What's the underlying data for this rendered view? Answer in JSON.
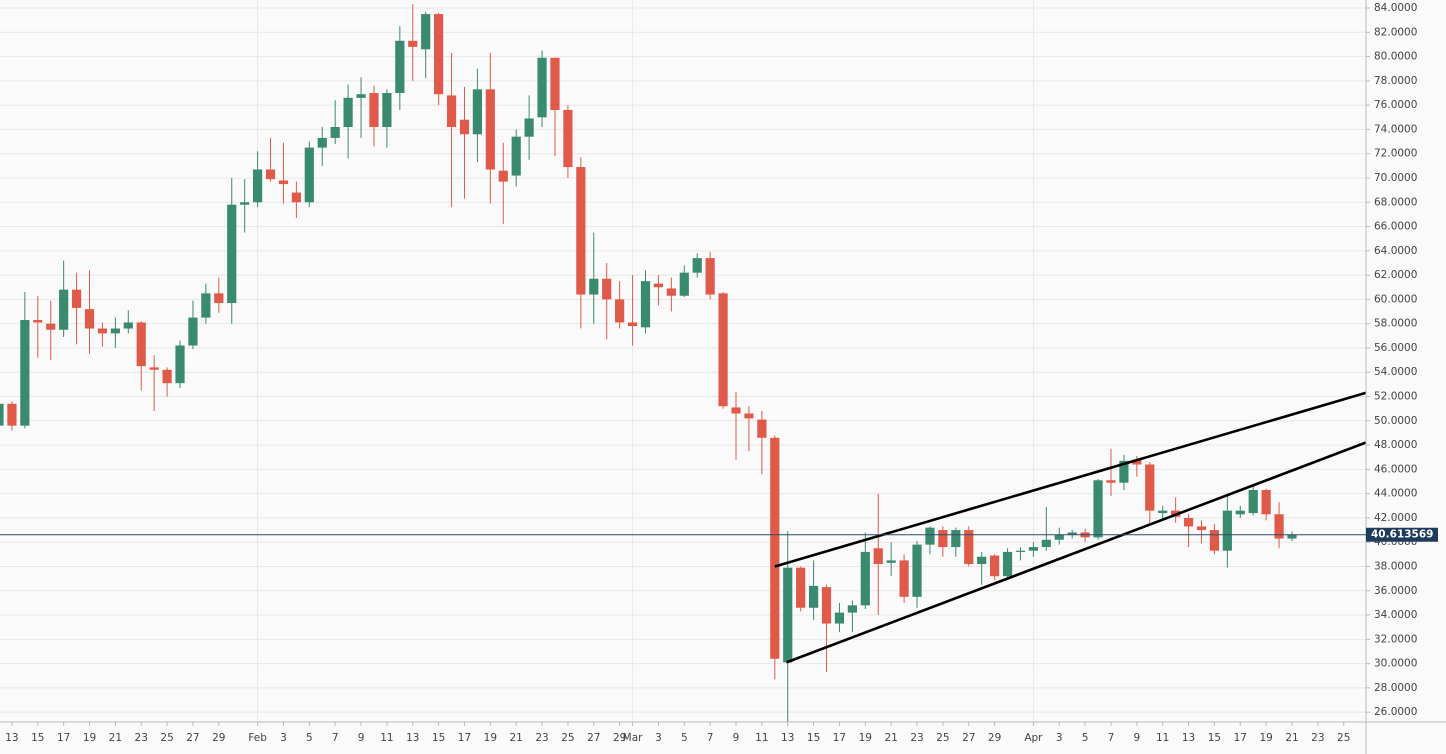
{
  "chart_data": {
    "type": "candlestick",
    "categories": [
      null,
      "13",
      null,
      "15",
      null,
      "17",
      null,
      "19",
      null,
      "21",
      null,
      "23",
      null,
      "25",
      null,
      "27",
      null,
      "29",
      null,
      null,
      "Feb",
      null,
      "3",
      null,
      "5",
      null,
      "7",
      null,
      "9",
      null,
      "11",
      null,
      "13",
      null,
      "15",
      null,
      "17",
      null,
      "19",
      null,
      "21",
      null,
      "23",
      null,
      "25",
      null,
      "27",
      null,
      "29",
      "Mar",
      null,
      "3",
      null,
      "5",
      null,
      "7",
      null,
      "9",
      null,
      "11",
      null,
      "13",
      null,
      "15",
      null,
      "17",
      null,
      "19",
      null,
      "21",
      null,
      "23",
      null,
      "25",
      null,
      "27",
      null,
      "29",
      null,
      null,
      "Apr",
      null,
      "3",
      null,
      "5",
      null,
      "7",
      null,
      "9",
      null,
      "11",
      null,
      "13",
      null,
      "15",
      null,
      "17",
      null,
      "19",
      null,
      "21",
      null,
      "23",
      null,
      "25",
      null
    ],
    "open": [
      49.6,
      51.4,
      49.6,
      58.3,
      58.0,
      57.5,
      60.8,
      59.2,
      57.6,
      57.2,
      57.6,
      58.1,
      54.4,
      54.2,
      53.1,
      56.2,
      58.5,
      60.5,
      59.7,
      67.8,
      68.0,
      70.7,
      69.8,
      68.8,
      68.0,
      72.5,
      73.3,
      74.2,
      76.6,
      77.0,
      74.2,
      77.0,
      81.3,
      80.6,
      83.5,
      76.8,
      74.8,
      73.6,
      77.3,
      70.6,
      70.2,
      73.4,
      75.0,
      79.9,
      75.6,
      70.9,
      60.4,
      61.7,
      60.0,
      58.1,
      57.7,
      61.3,
      60.9,
      60.3,
      62.2,
      63.4,
      60.5,
      51.1,
      50.6,
      50.1,
      48.6,
      30.1,
      37.9,
      34.6,
      36.3,
      33.3,
      34.2,
      34.8,
      39.5,
      38.3,
      38.5,
      35.5,
      39.8,
      41.0,
      39.6,
      41.0,
      38.2,
      38.9,
      37.2,
      39.2,
      39.3,
      39.6,
      40.2,
      40.6,
      40.8,
      40.4,
      45.1,
      44.9,
      46.8,
      46.4,
      42.4,
      42.6,
      42.0,
      41.3,
      41.0,
      39.3,
      42.3,
      42.4,
      44.3,
      42.3,
      40.3,
      null,
      null,
      null,
      null,
      null
    ],
    "high": [
      51.6,
      51.6,
      60.6,
      60.3,
      59.9,
      63.2,
      62.2,
      62.4,
      58.1,
      58.5,
      59.1,
      58.2,
      55.4,
      54.4,
      56.6,
      59.9,
      61.3,
      61.8,
      70.0,
      69.9,
      72.2,
      73.3,
      72.9,
      69.7,
      73.0,
      74.2,
      76.4,
      77.7,
      78.3,
      77.6,
      77.3,
      82.5,
      84.3,
      83.7,
      83.6,
      80.3,
      77.5,
      79.0,
      80.3,
      72.9,
      74.0,
      76.8,
      80.5,
      79.9,
      76.0,
      71.7,
      65.5,
      63.0,
      61.5,
      62.0,
      62.4,
      62.0,
      61.8,
      62.8,
      63.8,
      63.9,
      60.6,
      52.4,
      51.2,
      50.8,
      48.8,
      40.9,
      38.0,
      38.5,
      36.5,
      35.0,
      35.2,
      40.8,
      44.0,
      40.0,
      39.0,
      40.1,
      41.3,
      41.3,
      41.2,
      41.3,
      39.2,
      39.0,
      39.5,
      39.6,
      40.0,
      42.9,
      41.2,
      41.0,
      41.1,
      45.2,
      47.7,
      47.2,
      47.1,
      46.6,
      43.0,
      43.7,
      42.3,
      41.8,
      41.5,
      43.8,
      43.0,
      44.6,
      44.4,
      43.3,
      40.9,
      null,
      null,
      null,
      null,
      null
    ],
    "low": [
      48.9,
      49.2,
      49.4,
      55.2,
      55.0,
      56.9,
      56.3,
      55.5,
      56.1,
      56.0,
      57.2,
      52.5,
      50.8,
      52.0,
      52.7,
      55.9,
      58.0,
      58.9,
      58.0,
      65.5,
      67.6,
      69.7,
      67.9,
      66.7,
      67.6,
      71.0,
      72.8,
      71.6,
      73.3,
      72.6,
      72.5,
      75.6,
      78.0,
      78.2,
      76.0,
      67.6,
      68.3,
      71.3,
      67.9,
      66.2,
      69.3,
      71.5,
      74.2,
      71.8,
      70.0,
      57.6,
      58.0,
      56.7,
      57.6,
      56.2,
      57.2,
      59.5,
      59.0,
      60.2,
      61.8,
      60.0,
      51.0,
      46.8,
      47.5,
      45.6,
      28.7,
      25.0,
      34.3,
      33.6,
      29.3,
      32.6,
      32.6,
      34.5,
      34.0,
      37.2,
      35.0,
      34.6,
      39.0,
      38.8,
      38.8,
      38.0,
      36.5,
      36.9,
      37.0,
      38.5,
      38.8,
      39.3,
      39.8,
      40.3,
      40.0,
      40.2,
      43.8,
      44.3,
      45.4,
      41.5,
      41.8,
      41.6,
      39.6,
      39.9,
      39.0,
      37.9,
      42.0,
      42.2,
      41.8,
      39.5,
      40.1,
      null,
      null,
      null,
      null,
      null
    ],
    "close": [
      51.4,
      49.6,
      58.3,
      58.1,
      57.5,
      60.8,
      59.3,
      57.6,
      57.2,
      57.6,
      58.1,
      54.5,
      54.2,
      53.1,
      56.2,
      58.5,
      60.5,
      59.7,
      67.8,
      68.0,
      70.7,
      69.9,
      69.5,
      68.0,
      72.5,
      73.3,
      74.2,
      76.6,
      76.9,
      74.2,
      77.0,
      81.3,
      80.8,
      83.5,
      76.9,
      74.2,
      73.6,
      77.3,
      70.7,
      69.7,
      73.4,
      74.9,
      79.9,
      75.6,
      70.9,
      60.4,
      61.7,
      60.0,
      58.1,
      57.8,
      61.5,
      61.0,
      60.3,
      62.2,
      63.4,
      60.4,
      51.2,
      50.6,
      50.2,
      48.6,
      30.4,
      37.9,
      34.6,
      36.4,
      33.3,
      34.2,
      34.8,
      39.2,
      38.2,
      38.5,
      35.5,
      39.8,
      41.2,
      39.6,
      41.0,
      38.2,
      38.8,
      37.2,
      39.2,
      39.3,
      39.6,
      40.2,
      40.6,
      40.8,
      40.4,
      45.1,
      44.9,
      46.7,
      46.4,
      42.6,
      42.6,
      42.1,
      41.3,
      41.0,
      39.3,
      42.6,
      42.6,
      44.3,
      42.3,
      40.3,
      40.6,
      null,
      null,
      null,
      null,
      null
    ],
    "colors": {
      "up": "#3a8a6f",
      "down": "#e05a4a"
    },
    "ylim": [
      25.19,
      84.66
    ],
    "yticks": [
      {
        "value": 26,
        "label": "26.0000"
      },
      {
        "value": 28,
        "label": "28.0000"
      },
      {
        "value": 30,
        "label": "30.0000"
      },
      {
        "value": 32,
        "label": "32.0000"
      },
      {
        "value": 34,
        "label": "34.0000"
      },
      {
        "value": 36,
        "label": "36.0000"
      },
      {
        "value": 38,
        "label": "38.0000"
      },
      {
        "value": 40,
        "label": "40.0000"
      },
      {
        "value": 42,
        "label": "42.0000"
      },
      {
        "value": 44,
        "label": "44.0000"
      },
      {
        "value": 46,
        "label": "46.0000"
      },
      {
        "value": 48,
        "label": "48.0000"
      },
      {
        "value": 50,
        "label": "50.0000"
      },
      {
        "value": 52,
        "label": "52.0000"
      },
      {
        "value": 54,
        "label": "54.0000"
      },
      {
        "value": 56,
        "label": "56.0000"
      },
      {
        "value": 58,
        "label": "58.0000"
      },
      {
        "value": 60,
        "label": "60.0000"
      },
      {
        "value": 62,
        "label": "62.0000"
      },
      {
        "value": 64,
        "label": "64.0000"
      },
      {
        "value": 66,
        "label": "66.0000"
      },
      {
        "value": 68,
        "label": "68.0000"
      },
      {
        "value": 70,
        "label": "70.0000"
      },
      {
        "value": 72,
        "label": "72.0000"
      },
      {
        "value": 74,
        "label": "74.0000"
      },
      {
        "value": 76,
        "label": "76.0000"
      },
      {
        "value": 78,
        "label": "78.0000"
      },
      {
        "value": 80,
        "label": "80.0000"
      },
      {
        "value": 82,
        "label": "82.0000"
      },
      {
        "value": 84,
        "label": "84.0000"
      }
    ],
    "grid": true,
    "last_price": 40.613569,
    "trendlines": [
      {
        "x": [
          60.0,
          105.7
        ],
        "y": [
          38.0,
          52.3
        ]
      },
      {
        "x": [
          60.9,
          105.7
        ],
        "y": [
          30.1,
          48.2
        ]
      }
    ]
  }
}
